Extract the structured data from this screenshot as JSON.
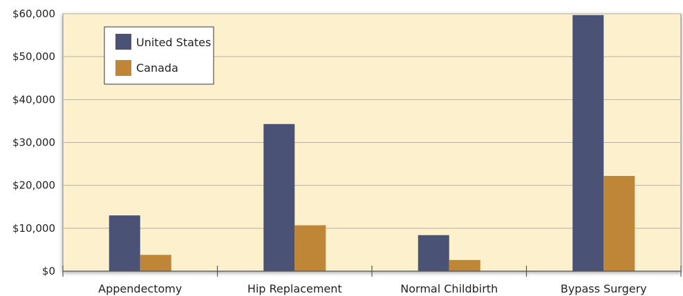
{
  "chart_data": {
    "type": "bar",
    "title": "",
    "xlabel": "",
    "ylabel": "",
    "categories": [
      "Appendectomy",
      "Hip Replacement",
      "Normal Childbirth",
      "Bypass Surgery"
    ],
    "series": [
      {
        "name": "United States",
        "values": [
          13000,
          34300,
          8400,
          59700
        ],
        "color": "#4a5275"
      },
      {
        "name": "Canada",
        "values": [
          3800,
          10700,
          2600,
          22200
        ],
        "color": "#bf8637"
      }
    ],
    "ylim": [
      0,
      60000
    ],
    "yticks": [
      0,
      10000,
      20000,
      30000,
      40000,
      50000,
      60000
    ],
    "ytick_labels": [
      "$0",
      "$10,000",
      "$20,000",
      "$30,000",
      "$40,000",
      "$50,000",
      "$60,000"
    ],
    "grid": true,
    "legend_position": "top-left",
    "plot_background": "#fdf0cc"
  }
}
